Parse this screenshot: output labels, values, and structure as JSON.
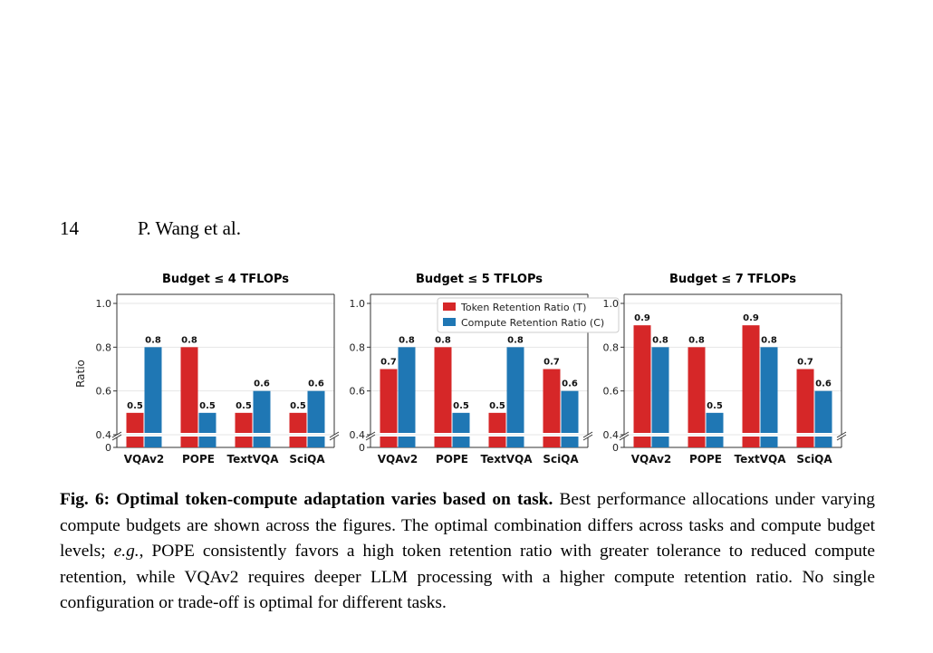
{
  "header": {
    "page_number": "14",
    "running_title": "P. Wang et al."
  },
  "colors": {
    "token": "#d62728",
    "compute": "#1f77b4"
  },
  "chart_data": [
    {
      "type": "bar",
      "title": "Budget ≤ 4 TFLOPs",
      "ylabel": "Ratio",
      "categories": [
        "VQAv2",
        "POPE",
        "TextVQA",
        "SciQA"
      ],
      "ylim": [
        0.4,
        1.0
      ],
      "broken_axis_bottom": "0",
      "yticks": [
        "0.4",
        "0.6",
        "0.8",
        "1.0"
      ],
      "series": [
        {
          "name": "Token Retention Ratio (T)",
          "values": [
            0.5,
            0.8,
            0.5,
            0.5
          ],
          "labels": [
            "0.5",
            "0.8",
            "0.5",
            "0.5"
          ]
        },
        {
          "name": "Compute Retention Ratio (C)",
          "values": [
            0.8,
            0.5,
            0.6,
            0.6
          ],
          "labels": [
            "0.8",
            "0.5",
            "0.6",
            "0.6"
          ]
        }
      ],
      "legend": "none"
    },
    {
      "type": "bar",
      "title": "Budget ≤ 5 TFLOPs",
      "ylabel": "",
      "categories": [
        "VQAv2",
        "POPE",
        "TextVQA",
        "SciQA"
      ],
      "ylim": [
        0.4,
        1.0
      ],
      "broken_axis_bottom": "0",
      "yticks": [
        "0.4",
        "0.6",
        "0.8",
        "1.0"
      ],
      "series": [
        {
          "name": "Token Retention Ratio (T)",
          "values": [
            0.7,
            0.8,
            0.5,
            0.7
          ],
          "labels": [
            "0.7",
            "0.8",
            "0.5",
            "0.7"
          ]
        },
        {
          "name": "Compute Retention Ratio (C)",
          "values": [
            0.8,
            0.5,
            0.8,
            0.6
          ],
          "labels": [
            "0.8",
            "0.5",
            "0.8",
            "0.6"
          ]
        }
      ],
      "legend": "top-center",
      "legend_entries": [
        "Token Retention Ratio (T)",
        "Compute Retention Ratio (C)"
      ]
    },
    {
      "type": "bar",
      "title": "Budget ≤ 7 TFLOPs",
      "ylabel": "",
      "categories": [
        "VQAv2",
        "POPE",
        "TextVQA",
        "SciQA"
      ],
      "ylim": [
        0.4,
        1.0
      ],
      "broken_axis_bottom": "0",
      "yticks": [
        "0.4",
        "0.6",
        "0.8",
        "1.0"
      ],
      "series": [
        {
          "name": "Token Retention Ratio (T)",
          "values": [
            0.9,
            0.8,
            0.9,
            0.7
          ],
          "labels": [
            "0.9",
            "0.8",
            "0.9",
            "0.7"
          ]
        },
        {
          "name": "Compute Retention Ratio (C)",
          "values": [
            0.8,
            0.5,
            0.8,
            0.6
          ],
          "labels": [
            "0.8",
            "0.5",
            "0.8",
            "0.6"
          ]
        }
      ],
      "legend": "none"
    }
  ],
  "caption": {
    "label": "Fig. 6: Optimal token-compute adaptation varies based on task.",
    "text_1": " Best performance allocations under varying compute budgets are shown across the figures. The optimal combination differs across tasks and compute budget levels; ",
    "eg": "e.g.",
    "text_2": ", POPE consistently favors a high token retention ratio with greater tolerance to reduced compute retention, while VQAv2 requires deeper LLM processing with a higher compute retention ratio. No single configuration or trade-off is optimal for different tasks."
  }
}
